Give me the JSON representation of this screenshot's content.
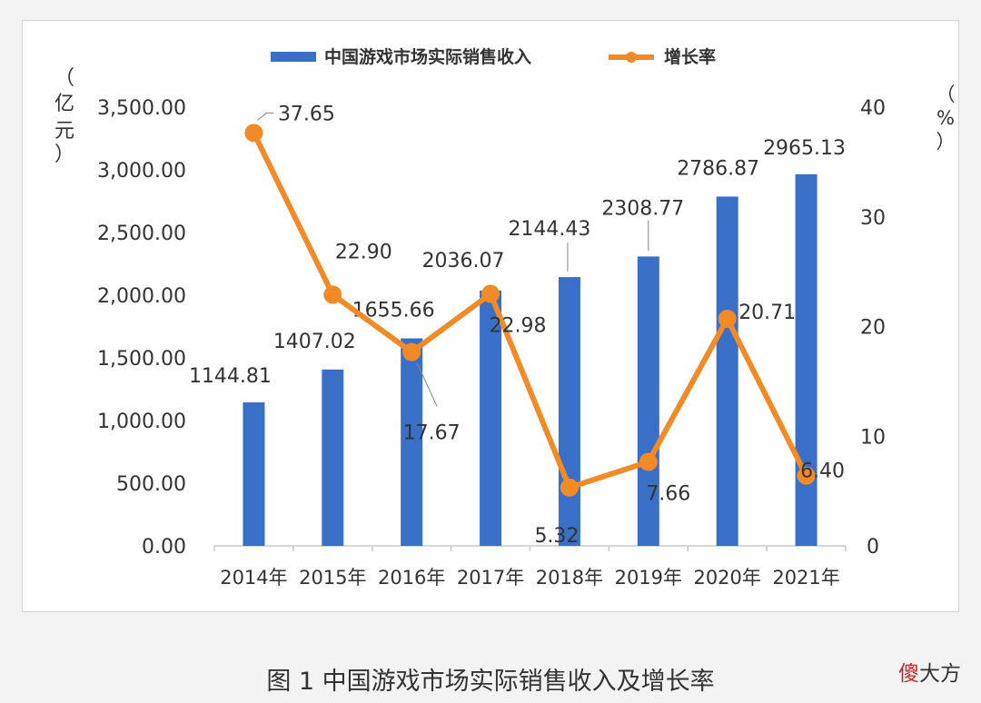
{
  "caption": "图 1 中国游戏市场实际销售收入及增长率",
  "watermark": {
    "part1": "傻",
    "part2": "大方"
  },
  "chart_data": {
    "type": "bar+line",
    "categories": [
      "2014年",
      "2015年",
      "2016年",
      "2017年",
      "2018年",
      "2019年",
      "2020年",
      "2021年"
    ],
    "series": [
      {
        "name": "中国游戏市场实际销售收入",
        "type": "bar",
        "axis": "left",
        "values": [
          1144.81,
          1407.02,
          1655.66,
          2036.07,
          2144.43,
          2308.77,
          2786.87,
          2965.13
        ],
        "labels": [
          "1144.81",
          "1407.02",
          "1655.66",
          "2036.07",
          "2144.43",
          "2308.77",
          "2786.87",
          "2965.13"
        ],
        "color": "#3a6fc8"
      },
      {
        "name": "增长率",
        "type": "line",
        "axis": "right",
        "values": [
          37.65,
          22.9,
          17.67,
          22.98,
          5.32,
          7.66,
          20.71,
          6.4
        ],
        "labels": [
          "37.65",
          "22.90",
          "17.67",
          "22.98",
          "5.32",
          "7.66",
          "20.71",
          "6.40"
        ],
        "color": "#f28a25"
      }
    ],
    "y_left": {
      "ticks": [
        "0.00",
        "500.00",
        "1,000.00",
        "1,500.00",
        "2,000.00",
        "2,500.00",
        "3,000.00",
        "3,500.00"
      ],
      "range": [
        0,
        3500
      ],
      "unit_label": [
        "（",
        "亿",
        "元",
        "）"
      ]
    },
    "y_right": {
      "ticks": [
        "0",
        "10",
        "20",
        "30",
        "40"
      ],
      "range": [
        0,
        40
      ],
      "unit_label": [
        "（",
        "%",
        "）"
      ]
    },
    "legend_position": "top-center",
    "grid": false
  }
}
